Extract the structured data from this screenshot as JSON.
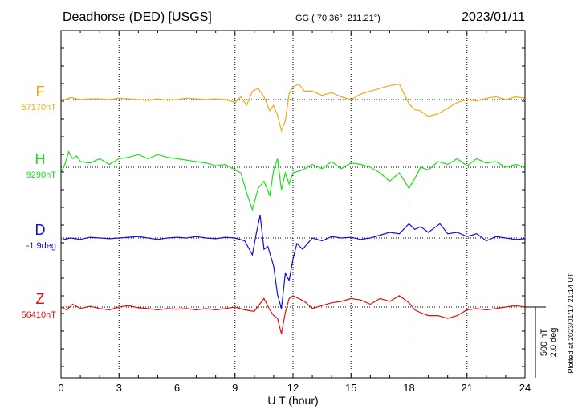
{
  "header": {
    "station": "Deadhorse (DED)  [USGS]",
    "coords": "GG ( 70.36°, 211.21°)",
    "date": "2023/01/11"
  },
  "footer": {
    "plotted": "Plotted at 2023/01/17 21:14 UT"
  },
  "chart_data": {
    "type": "line",
    "title": "",
    "xlabel": "U T (hour)",
    "xlim": [
      0,
      24
    ],
    "xticks": [
      "0",
      "3",
      "6",
      "9",
      "12",
      "15",
      "18",
      "21",
      "24"
    ],
    "scale_bar": {
      "line1": "500 nT",
      "line2": "2.0 deg"
    },
    "grid": true,
    "colors": {
      "F": "#f0a818",
      "H": "#18e018",
      "D": "#1010d8",
      "Z": "#e01010"
    },
    "series": [
      {
        "name": "F",
        "baseline_label": "57170nT",
        "note": "offset in nT from baseline; positive = upward",
        "x": [
          0,
          0.5,
          1,
          1.5,
          2,
          2.5,
          3,
          3.5,
          4,
          4.5,
          5,
          5.5,
          6,
          6.5,
          7,
          7.5,
          8,
          8.5,
          9,
          9.3,
          9.6,
          9.9,
          10.2,
          10.5,
          10.8,
          11,
          11.2,
          11.4,
          11.6,
          11.8,
          12,
          12.3,
          12.6,
          13,
          13.5,
          14,
          14.5,
          15,
          15.5,
          16,
          16.5,
          17,
          17.5,
          18,
          18.3,
          18.6,
          19,
          19.5,
          20,
          20.5,
          21,
          21.5,
          22,
          22.5,
          23,
          23.5,
          24
        ],
        "y": [
          -10,
          15,
          0,
          5,
          5,
          0,
          10,
          5,
          0,
          -5,
          5,
          -5,
          0,
          10,
          5,
          0,
          5,
          0,
          -20,
          20,
          -40,
          60,
          80,
          20,
          -80,
          -40,
          -110,
          -220,
          -150,
          40,
          90,
          110,
          60,
          60,
          30,
          50,
          20,
          0,
          40,
          60,
          80,
          100,
          110,
          -30,
          -70,
          -80,
          -120,
          -100,
          -60,
          -20,
          0,
          -10,
          10,
          20,
          0,
          20,
          10
        ]
      },
      {
        "name": "H",
        "baseline_label": "9290nT",
        "note": "offset in nT from baseline; positive = upward",
        "x": [
          0,
          0.2,
          0.4,
          0.6,
          0.8,
          1,
          1.5,
          2,
          2.5,
          3,
          3.5,
          4,
          4.5,
          5,
          5.5,
          6,
          6.5,
          7,
          7.5,
          8,
          8.5,
          9,
          9.3,
          9.6,
          9.9,
          10.2,
          10.5,
          10.8,
          11,
          11.2,
          11.4,
          11.6,
          11.8,
          12,
          12.5,
          13,
          13.5,
          14,
          14.5,
          15,
          15.5,
          16,
          16.5,
          17,
          17.5,
          18,
          18.3,
          18.6,
          19,
          19.5,
          20,
          20.5,
          21,
          21.5,
          22,
          22.5,
          23,
          23.5,
          24
        ],
        "y": [
          -40,
          20,
          110,
          60,
          80,
          40,
          30,
          60,
          20,
          60,
          70,
          90,
          60,
          90,
          70,
          60,
          50,
          40,
          30,
          10,
          20,
          -20,
          -40,
          -180,
          -300,
          -150,
          -100,
          -200,
          -20,
          60,
          -160,
          -40,
          -120,
          -40,
          -20,
          20,
          -10,
          40,
          -10,
          30,
          20,
          0,
          -40,
          -100,
          -40,
          -150,
          -80,
          0,
          -20,
          40,
          20,
          60,
          10,
          60,
          30,
          40,
          0,
          20,
          0
        ]
      },
      {
        "name": "D",
        "baseline_label": "-1.9deg",
        "note": "offset in nT-equivalent from baseline; positive = upward",
        "x": [
          0,
          0.5,
          1,
          1.5,
          2,
          2.5,
          3,
          3.5,
          4,
          4.5,
          5,
          5.5,
          6,
          6.5,
          7,
          7.5,
          8,
          8.5,
          9,
          9.5,
          9.9,
          10.1,
          10.3,
          10.5,
          10.7,
          11,
          11.2,
          11.4,
          11.6,
          11.8,
          12,
          12.2,
          12.5,
          13,
          13.5,
          14,
          14.5,
          15,
          15.5,
          16,
          16.5,
          17,
          17.5,
          18,
          18.3,
          18.6,
          19,
          19.3,
          19.6,
          20,
          20.5,
          21,
          21.5,
          22,
          22.5,
          23,
          23.5,
          24
        ],
        "y": [
          -15,
          0,
          -10,
          5,
          0,
          -5,
          0,
          5,
          10,
          0,
          -10,
          0,
          5,
          0,
          10,
          0,
          -5,
          5,
          0,
          -20,
          -120,
          30,
          160,
          -80,
          -60,
          -200,
          -400,
          -500,
          -250,
          -300,
          -150,
          -40,
          -80,
          0,
          -20,
          10,
          0,
          5,
          -10,
          0,
          20,
          40,
          30,
          100,
          60,
          80,
          40,
          70,
          100,
          30,
          40,
          10,
          30,
          -20,
          10,
          0,
          -10,
          -5
        ]
      },
      {
        "name": "Z",
        "baseline_label": "56410nT",
        "note": "offset in nT from baseline; positive = upward",
        "x": [
          0,
          0.3,
          0.6,
          1,
          1.5,
          2,
          2.5,
          3,
          3.5,
          4,
          4.5,
          5,
          5.5,
          6,
          6.5,
          7,
          7.5,
          8,
          8.5,
          9,
          9.5,
          10,
          10.5,
          10.8,
          11,
          11.2,
          11.4,
          11.6,
          11.8,
          12,
          12.3,
          12.6,
          13,
          13.5,
          14,
          14.5,
          15,
          15.5,
          16,
          16.5,
          17,
          17.5,
          18,
          18.3,
          18.6,
          19,
          19.5,
          20,
          20.5,
          21,
          21.5,
          22,
          22.5,
          23,
          23.5,
          24
        ],
        "y": [
          0,
          -20,
          20,
          -10,
          5,
          -10,
          -20,
          0,
          10,
          -5,
          -10,
          -20,
          -10,
          -15,
          -10,
          -20,
          -10,
          -20,
          -10,
          0,
          -20,
          -30,
          60,
          -20,
          -60,
          -80,
          -190,
          -40,
          60,
          80,
          60,
          40,
          -10,
          10,
          30,
          40,
          60,
          50,
          20,
          60,
          40,
          80,
          30,
          -20,
          -40,
          -60,
          -60,
          -80,
          -60,
          -20,
          -10,
          -20,
          -10,
          0,
          10,
          0
        ]
      }
    ]
  }
}
